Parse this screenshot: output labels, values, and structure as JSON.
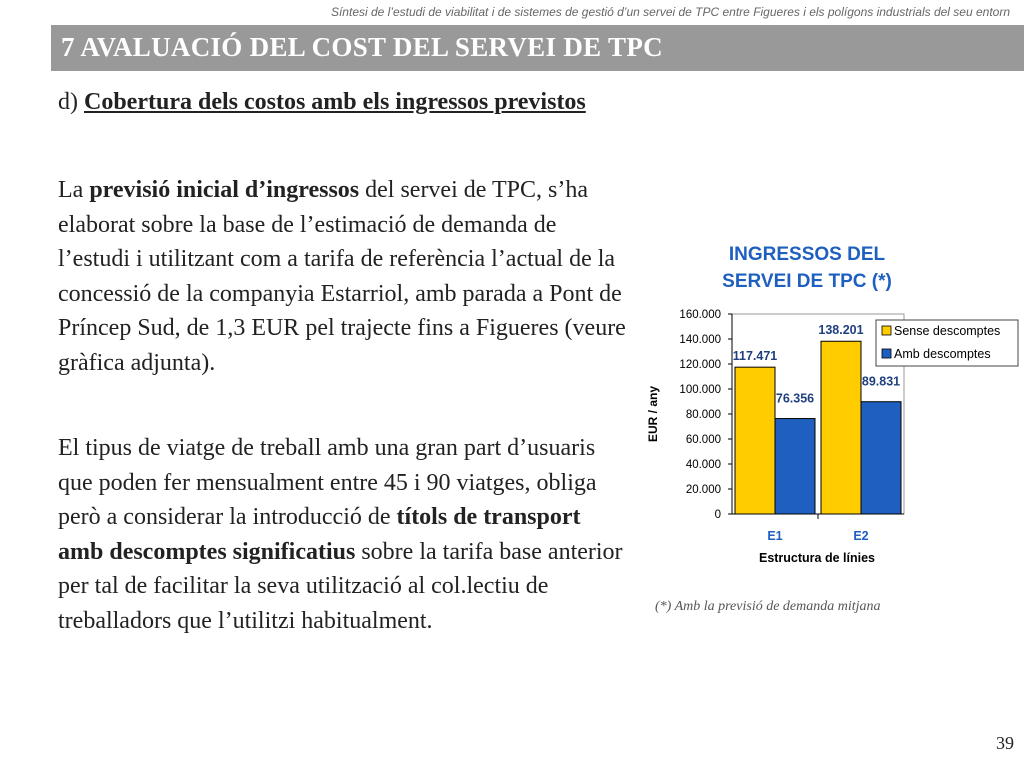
{
  "header_note": "Síntesi de l’estudi de viabilitat i de sistemes de gestió d’un servei de TPC entre Figueres i els polígons industrials del seu entorn",
  "section_title": "7 AVALUACIÓ DEL COST DEL SERVEI DE TPC",
  "subtitle": {
    "prefix": "d) ",
    "underlined": "Cobertura dels costos amb els ingressos previstos"
  },
  "paragraph1": {
    "t1": "La ",
    "b1": "previsió inicial d’ingressos",
    "t2": " del servei de TPC, s’ha elaborat sobre la base de l’estimació de demanda de l’estudi i utilitzant com a tarifa de referència l’actual de la concessió de la companyia Estarriol, amb parada a Pont de Príncep Sud, de 1,3 EUR pel trajecte fins a Figueres (veure gràfica adjunta)."
  },
  "paragraph2": {
    "t1": "El tipus de viatge de treball amb una gran part d’usuaris que poden fer mensualment entre 45 i 90 viatges, obliga però a considerar la introducció de ",
    "b1": "títols de transport amb descomptes significatius",
    "t2": " sobre la tarifa base anterior per tal de facilitar la seva utilització al col.lectiu de treballadors que l’utilitzi habitualment."
  },
  "caption": "(*) Amb la previsió de demanda mitjana",
  "page_number": "39",
  "chart_data": {
    "type": "bar",
    "title_lines": [
      "INGRESSOS DEL",
      "SERVEI DE TPC (*)"
    ],
    "xlabel": "Estructura de línies",
    "ylabel": "EUR / any",
    "categories": [
      "E1",
      "E2"
    ],
    "ylim": [
      0,
      160000
    ],
    "yticks": [
      0,
      20000,
      40000,
      60000,
      80000,
      100000,
      120000,
      140000,
      160000
    ],
    "ytick_labels": [
      "0",
      "20.000",
      "40.000",
      "60.000",
      "80.000",
      "100.000",
      "120.000",
      "140.000",
      "160.000"
    ],
    "series": [
      {
        "name": "Sense descomptes",
        "values": [
          117471,
          138201
        ],
        "labels": [
          "117.471",
          "138.201"
        ],
        "color": "#FFCC00"
      },
      {
        "name": "Amb descomptes",
        "values": [
          76356,
          89831
        ],
        "labels": [
          "76.356",
          "89.831"
        ],
        "color": "#1F5FBF"
      }
    ],
    "legend_position": "top-right",
    "title_color": "#1F5FBF",
    "label_color": "#1F3F7F"
  }
}
